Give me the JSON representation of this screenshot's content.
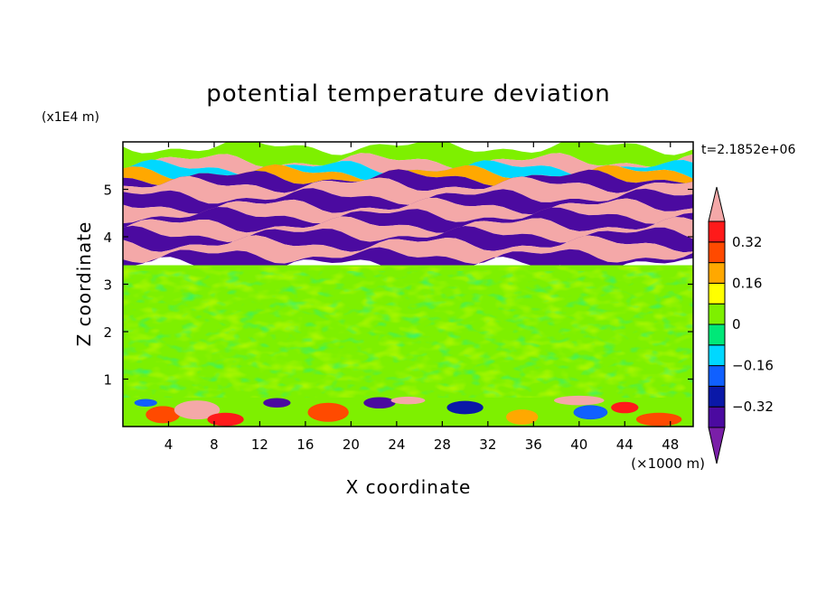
{
  "chart_data": {
    "type": "heatmap",
    "title": "potential temperature deviation",
    "xlabel": "X coordinate",
    "ylabel": "Z coordinate",
    "x_unit": "(×1000 m)",
    "y_unit": "(x1E4 m)",
    "time_label": "t=2.1852e+06",
    "xlim": [
      0,
      50
    ],
    "ylim": [
      0,
      6
    ],
    "x_ticks": [
      4,
      8,
      12,
      16,
      20,
      24,
      28,
      32,
      36,
      40,
      44,
      48
    ],
    "y_ticks": [
      1,
      2,
      3,
      4,
      5
    ],
    "colorbar": {
      "levels": [
        -0.4,
        -0.32,
        -0.24,
        -0.16,
        -0.08,
        0,
        0.08,
        0.16,
        0.24,
        0.32,
        0.4
      ],
      "labels": [
        "0.32",
        "0.16",
        "0",
        "−0.16",
        "−0.32"
      ],
      "label_values": [
        0.32,
        0.16,
        0,
        -0.16,
        -0.32
      ],
      "colors": [
        "#7a1fa8",
        "#4b0aa0",
        "#0a18a8",
        "#1060ff",
        "#00d8ff",
        "#00e878",
        "#7ef000",
        "#ffff00",
        "#ffa800",
        "#ff4a00",
        "#ff1a1a",
        "#f4a8a8"
      ],
      "extend": "both"
    },
    "layers": [
      {
        "z": [
          5.6,
          5.9
        ],
        "value": 0.05
      },
      {
        "z": [
          5.45,
          5.6
        ],
        "value": 0.42
      },
      {
        "z": [
          5.35,
          5.45
        ],
        "value": -0.12
      },
      {
        "z": [
          5.25,
          5.35
        ],
        "value": 0.2
      },
      {
        "z": [
          5.1,
          5.25
        ],
        "value": -0.38
      },
      {
        "z": [
          4.85,
          5.1
        ],
        "value": 0.42
      },
      {
        "z": [
          4.65,
          4.85
        ],
        "value": -0.38
      },
      {
        "z": [
          4.45,
          4.65
        ],
        "value": 0.42
      },
      {
        "z": [
          4.25,
          4.45
        ],
        "value": -0.38
      },
      {
        "z": [
          4.05,
          4.25
        ],
        "value": 0.42
      },
      {
        "z": [
          3.85,
          4.05
        ],
        "value": -0.38
      },
      {
        "z": [
          3.6,
          3.85
        ],
        "value": 0.42
      },
      {
        "z": [
          3.4,
          3.6
        ],
        "value": -0.38
      },
      {
        "z": [
          0.6,
          3.4
        ],
        "value": 0.04
      },
      {
        "z": [
          0.0,
          0.6
        ],
        "value": 0.02
      }
    ]
  }
}
